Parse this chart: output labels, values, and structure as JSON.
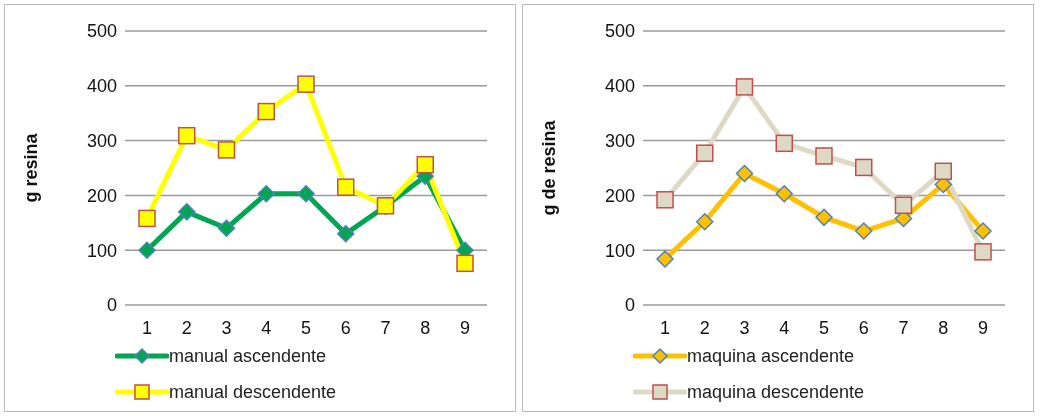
{
  "chart_data": [
    {
      "type": "line",
      "ylabel": "g resina",
      "categories": [
        "1",
        "2",
        "3",
        "4",
        "5",
        "6",
        "7",
        "8",
        "9"
      ],
      "ylim": [
        0,
        500
      ],
      "yticks": [
        0,
        100,
        200,
        300,
        400,
        500
      ],
      "grid": "y",
      "legend": "bottom",
      "series": [
        {
          "name": "manual ascendente",
          "color": "#00a651",
          "marker": "diamond",
          "values": [
            100,
            170,
            140,
            203,
            203,
            130,
            180,
            235,
            100
          ]
        },
        {
          "name": "manual descendente",
          "color": "#ffff00",
          "marker": "square",
          "values": [
            158,
            309,
            283,
            353,
            403,
            215,
            181,
            256,
            76
          ]
        }
      ]
    },
    {
      "type": "line",
      "ylabel": "g de resina",
      "categories": [
        "1",
        "2",
        "3",
        "4",
        "5",
        "6",
        "7",
        "8",
        "9"
      ],
      "ylim": [
        0,
        500
      ],
      "yticks": [
        0,
        100,
        200,
        300,
        400,
        500
      ],
      "grid": "y",
      "legend": "bottom",
      "series": [
        {
          "name": "maquina ascendente",
          "color": "#ffc000",
          "marker": "diamond",
          "values": [
            84,
            152,
            240,
            203,
            160,
            135,
            158,
            220,
            135
          ]
        },
        {
          "name": "maquina descendente",
          "color": "#ddd9c4",
          "marker": "square",
          "values": [
            192,
            277,
            398,
            295,
            272,
            251,
            182,
            244,
            97
          ]
        }
      ]
    }
  ]
}
